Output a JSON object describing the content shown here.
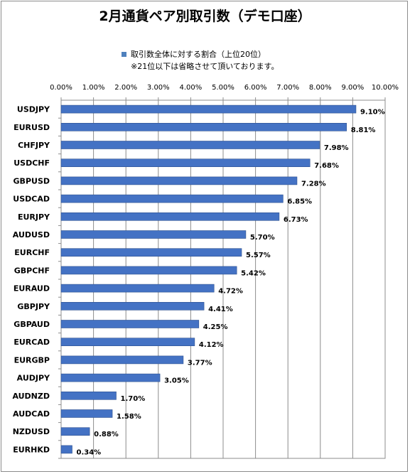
{
  "chart_data": {
    "type": "bar",
    "orientation": "horizontal",
    "title": "2月通貨ペア別取引数（デモ口座）",
    "legend": {
      "entry": "取引数全体に対する割合（上位20位）",
      "note": "※21位以下は省略させて頂いております。",
      "placement": "top"
    },
    "categories": [
      "USDJPY",
      "EURUSD",
      "CHFJPY",
      "USDCHF",
      "GBPUSD",
      "USDCAD",
      "EURJPY",
      "AUDUSD",
      "EURCHF",
      "GBPCHF",
      "EURAUD",
      "GBPJPY",
      "GBPAUD",
      "EURCAD",
      "EURGBP",
      "AUDJPY",
      "AUDNZD",
      "AUDCAD",
      "NZDUSD",
      "EURHKD"
    ],
    "values": [
      9.1,
      8.81,
      7.98,
      7.68,
      7.28,
      6.85,
      6.73,
      5.7,
      5.57,
      5.42,
      4.72,
      4.41,
      4.25,
      4.12,
      3.77,
      3.05,
      1.7,
      1.58,
      0.88,
      0.34
    ],
    "value_labels": [
      "9.10%",
      "8.81%",
      "7.98%",
      "7.68%",
      "7.28%",
      "6.85%",
      "6.73%",
      "5.70%",
      "5.57%",
      "5.42%",
      "4.72%",
      "4.41%",
      "4.25%",
      "4.12%",
      "3.77%",
      "3.05%",
      "1.70%",
      "1.58%",
      "0.88%",
      "0.34%"
    ],
    "x_ticks": [
      "0.00%",
      "1.00%",
      "2.00%",
      "3.00%",
      "4.00%",
      "5.00%",
      "6.00%",
      "7.00%",
      "8.00%",
      "9.00%",
      "10.00%"
    ],
    "xlim": [
      0,
      10
    ],
    "x_axis_position": "top",
    "grid": true,
    "bar_color": "#4472c4"
  }
}
